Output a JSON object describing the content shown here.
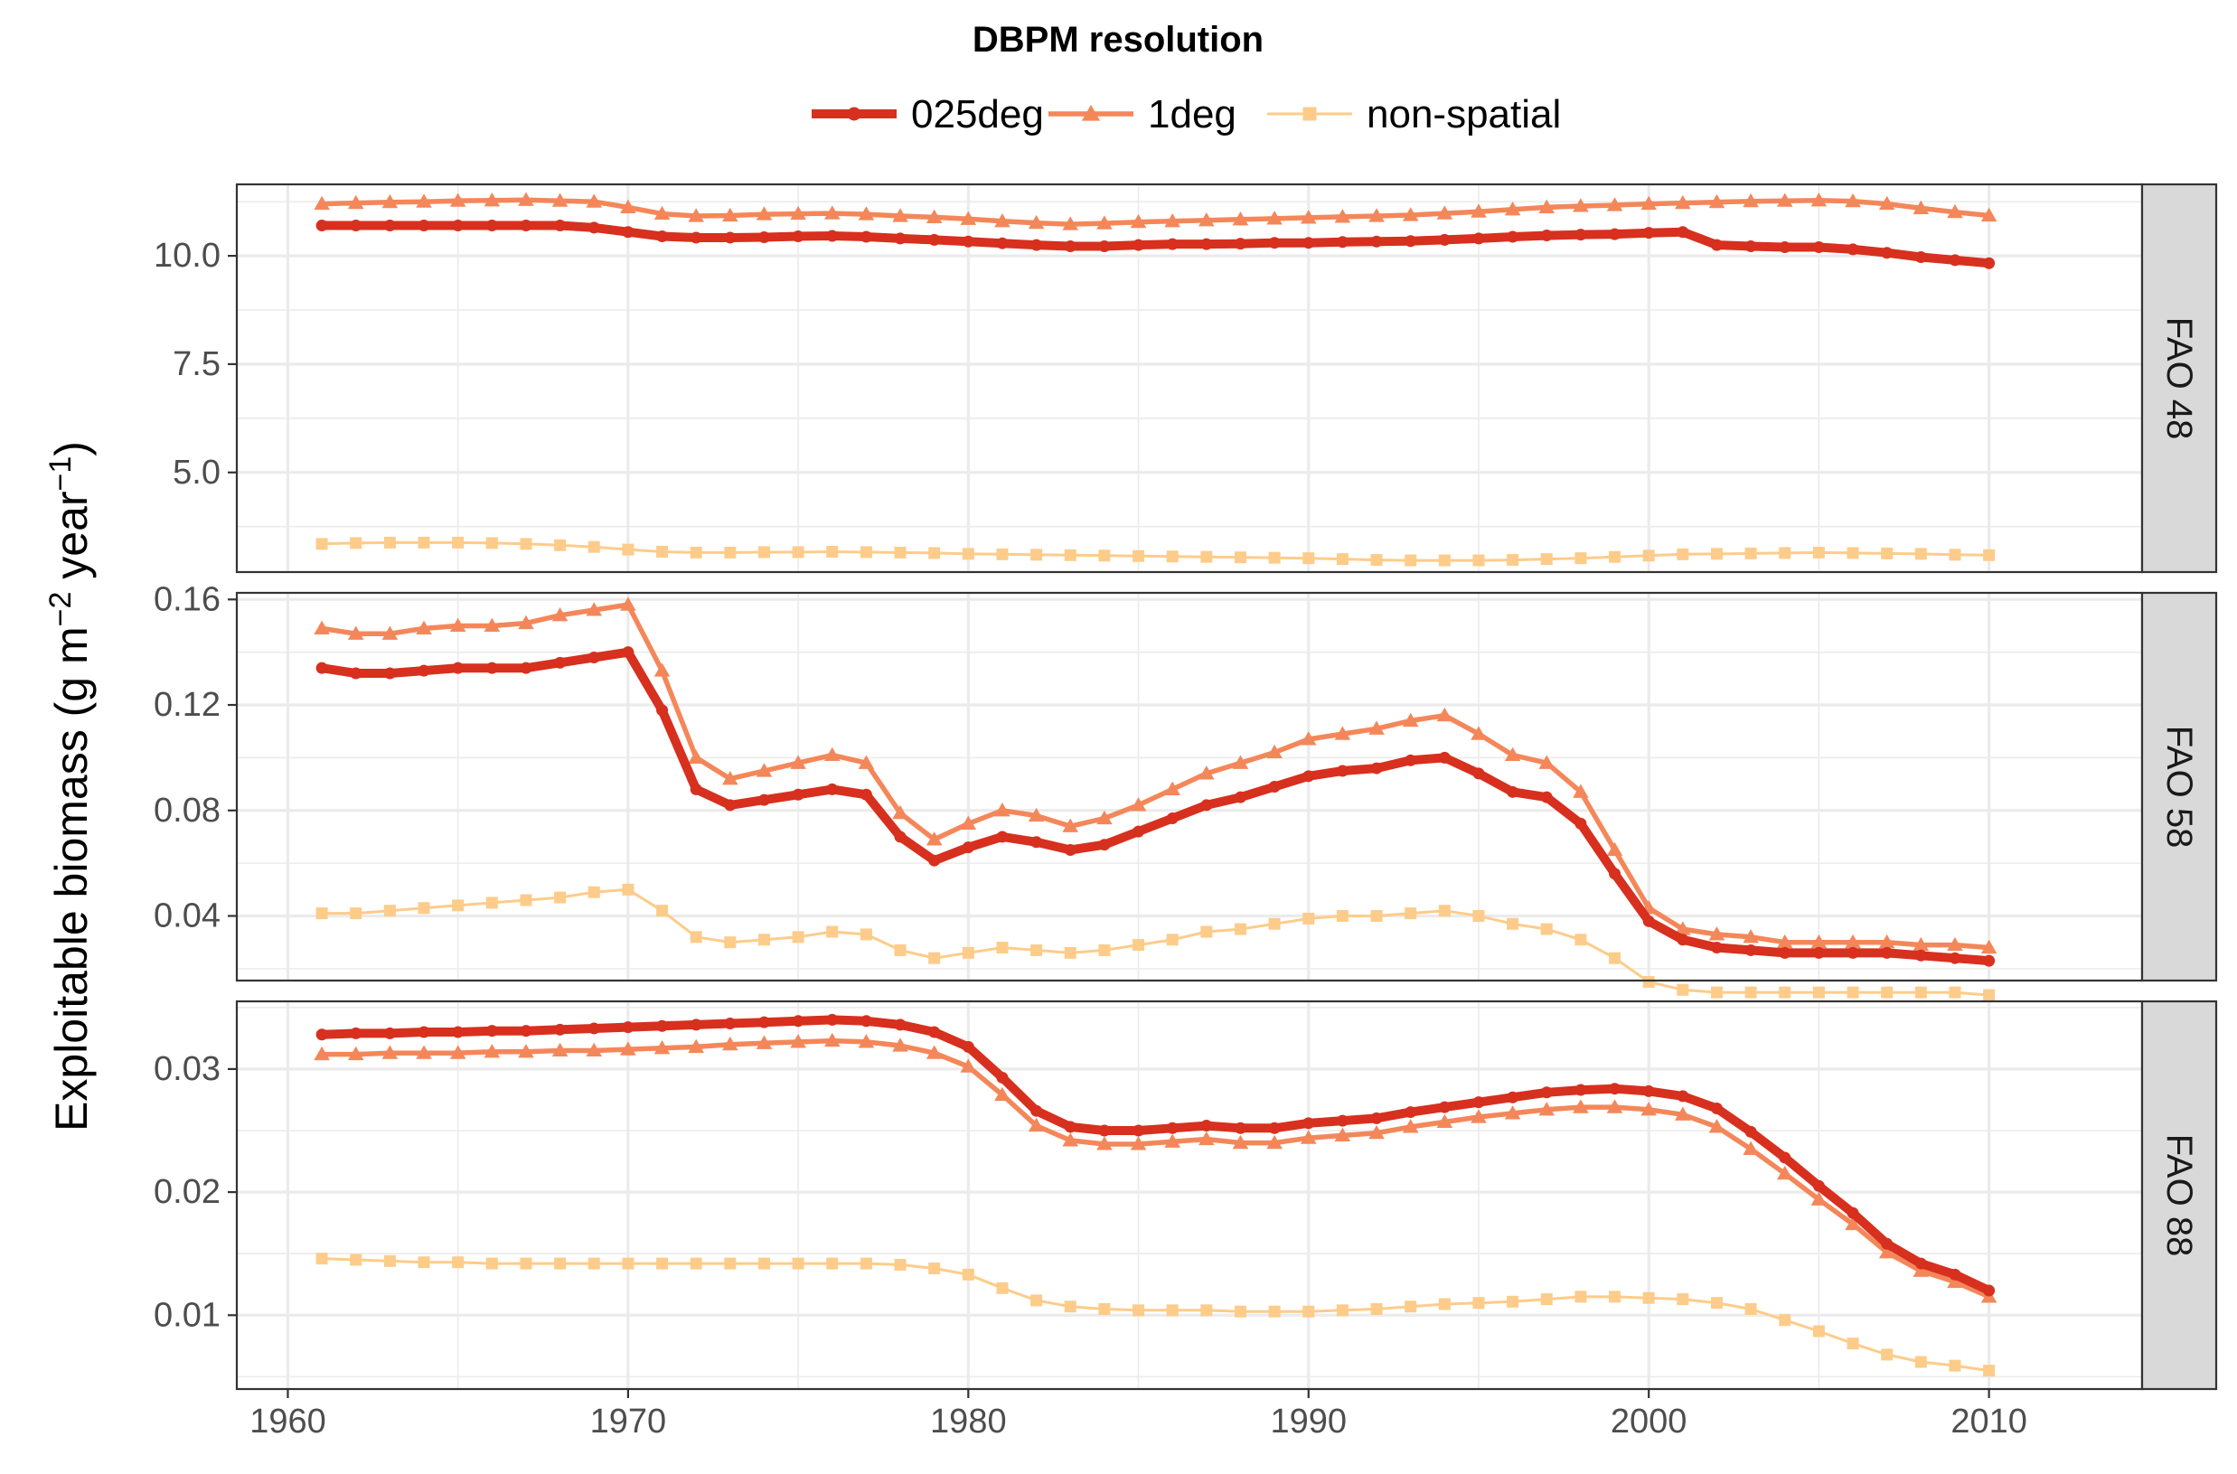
{
  "colors": {
    "025deg": "#d7301f",
    "1deg": "#f4875a",
    "non-spatial": "#fdcc8a",
    "grid": "#ebebeb",
    "panel_border": "#333333",
    "strip_fill": "#d9d9d9",
    "tick_text": "#4d4d4d"
  },
  "chart_data": {
    "type": "line",
    "ylabel": "Exploitable biomass (g m^-2 year^-1)",
    "ylabel_parts": {
      "main": "Exploitable biomass (g m",
      "sup1": "−2",
      "mid": " year",
      "sup2": "−1",
      "end": ")"
    },
    "legend": {
      "title": "DBPM resolution",
      "position": "top",
      "entries": [
        {
          "name": "025deg",
          "marker": "circle"
        },
        {
          "name": "1deg",
          "marker": "triangle"
        },
        {
          "name": "non-spatial",
          "marker": "square"
        }
      ]
    },
    "x": {
      "range": [
        1958.5,
        2014.5
      ],
      "ticks": [
        1960,
        1970,
        1980,
        1990,
        2000,
        2010
      ],
      "tick_labels": [
        "1960",
        "1970",
        "1980",
        "1990",
        "2000",
        "2010"
      ],
      "start": 1961,
      "end": 2010
    },
    "grid": true,
    "panels": [
      {
        "strip": "FAO 48",
        "ylim": [
          2.7,
          11.65
        ],
        "yticks": [
          5.0,
          7.5,
          10.0
        ],
        "ytick_labels": [
          "5.0",
          "7.5",
          "10.0"
        ],
        "series": [
          {
            "name": "025deg",
            "values": [
              10.7,
              10.7,
              10.7,
              10.7,
              10.7,
              10.7,
              10.7,
              10.7,
              10.65,
              10.55,
              10.45,
              10.42,
              10.42,
              10.43,
              10.45,
              10.46,
              10.44,
              10.4,
              10.37,
              10.33,
              10.29,
              10.25,
              10.22,
              10.22,
              10.25,
              10.27,
              10.27,
              10.28,
              10.3,
              10.3,
              10.32,
              10.33,
              10.34,
              10.37,
              10.4,
              10.44,
              10.47,
              10.49,
              10.5,
              10.53,
              10.55,
              10.25,
              10.22,
              10.2,
              10.2,
              10.15,
              10.07,
              9.97,
              9.9,
              9.83
            ]
          },
          {
            "name": "1deg",
            "values": [
              11.2,
              11.22,
              11.24,
              11.25,
              11.27,
              11.28,
              11.29,
              11.27,
              11.25,
              11.12,
              10.97,
              10.92,
              10.93,
              10.96,
              10.97,
              10.98,
              10.96,
              10.92,
              10.89,
              10.85,
              10.8,
              10.76,
              10.73,
              10.75,
              10.78,
              10.8,
              10.82,
              10.84,
              10.86,
              10.88,
              10.9,
              10.92,
              10.94,
              10.98,
              11.02,
              11.07,
              11.12,
              11.15,
              11.17,
              11.2,
              11.22,
              11.24,
              11.26,
              11.27,
              11.28,
              11.26,
              11.2,
              11.1,
              11.01,
              10.93
            ]
          },
          {
            "name": "non-spatial",
            "values": [
              3.35,
              3.37,
              3.38,
              3.38,
              3.38,
              3.37,
              3.35,
              3.32,
              3.28,
              3.22,
              3.17,
              3.15,
              3.15,
              3.16,
              3.16,
              3.17,
              3.16,
              3.15,
              3.14,
              3.12,
              3.11,
              3.1,
              3.09,
              3.08,
              3.07,
              3.06,
              3.05,
              3.04,
              3.03,
              3.02,
              3.0,
              2.98,
              2.97,
              2.97,
              2.97,
              2.98,
              3.0,
              3.02,
              3.05,
              3.08,
              3.11,
              3.12,
              3.13,
              3.14,
              3.15,
              3.14,
              3.13,
              3.12,
              3.1,
              3.09
            ]
          }
        ]
      },
      {
        "strip": "FAO 58",
        "ylim": [
          0.0155,
          0.1625
        ],
        "yticks": [
          0.04,
          0.08,
          0.12,
          0.16
        ],
        "ytick_labels": [
          "0.04",
          "0.08",
          "0.12",
          "0.16"
        ],
        "series": [
          {
            "name": "025deg",
            "values": [
              0.134,
              0.132,
              0.132,
              0.133,
              0.134,
              0.134,
              0.134,
              0.136,
              0.138,
              0.14,
              0.118,
              0.088,
              0.082,
              0.084,
              0.086,
              0.088,
              0.086,
              0.07,
              0.061,
              0.066,
              0.07,
              0.068,
              0.065,
              0.067,
              0.072,
              0.077,
              0.082,
              0.085,
              0.089,
              0.093,
              0.095,
              0.096,
              0.099,
              0.1,
              0.094,
              0.087,
              0.085,
              0.075,
              0.056,
              0.038,
              0.031,
              0.028,
              0.027,
              0.026,
              0.026,
              0.026,
              0.026,
              0.025,
              0.024,
              0.023
            ]
          },
          {
            "name": "1deg",
            "values": [
              0.149,
              0.147,
              0.147,
              0.149,
              0.15,
              0.15,
              0.151,
              0.154,
              0.156,
              0.158,
              0.133,
              0.1,
              0.092,
              0.095,
              0.098,
              0.101,
              0.098,
              0.079,
              0.069,
              0.075,
              0.08,
              0.078,
              0.074,
              0.077,
              0.082,
              0.088,
              0.094,
              0.098,
              0.102,
              0.107,
              0.109,
              0.111,
              0.114,
              0.116,
              0.109,
              0.101,
              0.098,
              0.087,
              0.065,
              0.043,
              0.035,
              0.033,
              0.032,
              0.03,
              0.03,
              0.03,
              0.03,
              0.029,
              0.029,
              0.028
            ]
          },
          {
            "name": "non-spatial",
            "values": [
              0.041,
              0.041,
              0.042,
              0.043,
              0.044,
              0.045,
              0.046,
              0.047,
              0.049,
              0.05,
              0.042,
              0.032,
              0.03,
              0.031,
              0.032,
              0.034,
              0.033,
              0.027,
              0.024,
              0.026,
              0.028,
              0.027,
              0.026,
              0.027,
              0.029,
              0.031,
              0.034,
              0.035,
              0.037,
              0.039,
              0.04,
              0.04,
              0.041,
              0.042,
              0.04,
              0.037,
              0.035,
              0.031,
              0.024,
              0.015,
              0.012,
              0.011,
              0.011,
              0.011,
              0.011,
              0.011,
              0.011,
              0.011,
              0.011,
              0.01
            ]
          }
        ]
      },
      {
        "strip": "FAO 88",
        "ylim": [
          0.004,
          0.0355
        ],
        "yticks": [
          0.01,
          0.02,
          0.03
        ],
        "ytick_labels": [
          "0.01",
          "0.02",
          "0.03"
        ],
        "series": [
          {
            "name": "025deg",
            "values": [
              0.0328,
              0.0329,
              0.0329,
              0.033,
              0.033,
              0.0331,
              0.0331,
              0.0332,
              0.0333,
              0.0334,
              0.0335,
              0.0336,
              0.0337,
              0.0338,
              0.0339,
              0.034,
              0.0339,
              0.0336,
              0.033,
              0.0318,
              0.0293,
              0.0266,
              0.0253,
              0.025,
              0.025,
              0.0252,
              0.0254,
              0.0252,
              0.0252,
              0.0256,
              0.0258,
              0.026,
              0.0265,
              0.0269,
              0.0273,
              0.0277,
              0.0281,
              0.0283,
              0.0284,
              0.0282,
              0.0278,
              0.0268,
              0.0249,
              0.0228,
              0.0205,
              0.0183,
              0.0158,
              0.0142,
              0.0133,
              0.012
            ]
          },
          {
            "name": "1deg",
            "values": [
              0.0312,
              0.0312,
              0.0313,
              0.0313,
              0.0313,
              0.0314,
              0.0314,
              0.0315,
              0.0315,
              0.0316,
              0.0317,
              0.0318,
              0.032,
              0.0321,
              0.0322,
              0.0323,
              0.0322,
              0.0319,
              0.0313,
              0.0302,
              0.0279,
              0.0254,
              0.0242,
              0.0239,
              0.0239,
              0.0241,
              0.0243,
              0.024,
              0.024,
              0.0244,
              0.0246,
              0.0248,
              0.0253,
              0.0257,
              0.0261,
              0.0264,
              0.0267,
              0.0269,
              0.0269,
              0.0267,
              0.0263,
              0.0253,
              0.0235,
              0.0215,
              0.0194,
              0.0174,
              0.0151,
              0.0136,
              0.0127,
              0.0115
            ]
          },
          {
            "name": "non-spatial",
            "values": [
              0.0146,
              0.0145,
              0.0144,
              0.0143,
              0.0143,
              0.0142,
              0.0142,
              0.0142,
              0.0142,
              0.0142,
              0.0142,
              0.0142,
              0.0142,
              0.0142,
              0.0142,
              0.0142,
              0.0142,
              0.0141,
              0.0138,
              0.0133,
              0.0122,
              0.0112,
              0.0107,
              0.0105,
              0.0104,
              0.0104,
              0.0104,
              0.0103,
              0.0103,
              0.0103,
              0.0104,
              0.0105,
              0.0107,
              0.0109,
              0.011,
              0.0111,
              0.0113,
              0.0115,
              0.0115,
              0.0114,
              0.0113,
              0.011,
              0.0105,
              0.0096,
              0.0087,
              0.0077,
              0.0068,
              0.0062,
              0.0059,
              0.0055
            ]
          }
        ]
      }
    ]
  }
}
